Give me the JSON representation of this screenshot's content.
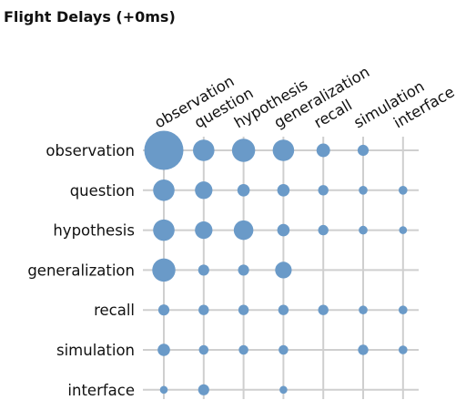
{
  "chart_data": {
    "type": "bubble-matrix",
    "title": "Flight Delays (+0ms)",
    "rows": [
      "observation",
      "question",
      "hypothesis",
      "generalization",
      "recall",
      "simulation",
      "interface"
    ],
    "columns": [
      "observation",
      "question",
      "hypothesis",
      "generalization",
      "recall",
      "simulation",
      "interface"
    ],
    "values": [
      [
        10,
        3,
        3.5,
        3,
        1.2,
        0.8,
        null
      ],
      [
        3,
        2,
        1,
        1,
        0.7,
        0.5,
        0.5
      ],
      [
        3,
        2,
        2.5,
        1,
        0.7,
        0.5,
        0.4
      ],
      [
        3.5,
        0.8,
        0.8,
        1.8,
        null,
        null,
        null
      ],
      [
        0.8,
        0.7,
        0.7,
        0.7,
        0.7,
        0.5,
        0.5
      ],
      [
        1,
        0.6,
        0.6,
        0.6,
        null,
        0.7,
        0.5
      ],
      [
        0.4,
        0.8,
        null,
        0.4,
        null,
        null,
        null
      ]
    ],
    "grid": true,
    "color": "#6a9ac8",
    "grid_color": "#cfcfcf"
  }
}
